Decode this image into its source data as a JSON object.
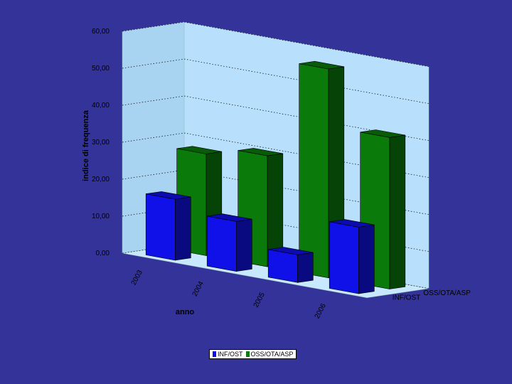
{
  "chart_data": {
    "type": "bar",
    "subtype": "3d-clustered-bar",
    "categories": [
      "2003",
      "2004",
      "2005",
      "2006"
    ],
    "series": [
      {
        "name": "INF/OST",
        "color": "#1010e8",
        "values": [
          16.5,
          13.5,
          7.5,
          18.0
        ]
      },
      {
        "name": "OSS/OTA/ASP",
        "color": "#0a7a0a",
        "values": [
          27.5,
          30.0,
          56.5,
          41.0
        ]
      }
    ],
    "xlabel": "anno",
    "ylabel": "indice di frequenza",
    "ylim": [
      0,
      60
    ],
    "yticks": [
      "0,00",
      "10,00",
      "20,00",
      "30,00",
      "40,00",
      "50,00",
      "60,00"
    ],
    "grid": true,
    "legend_position": "bottom"
  }
}
